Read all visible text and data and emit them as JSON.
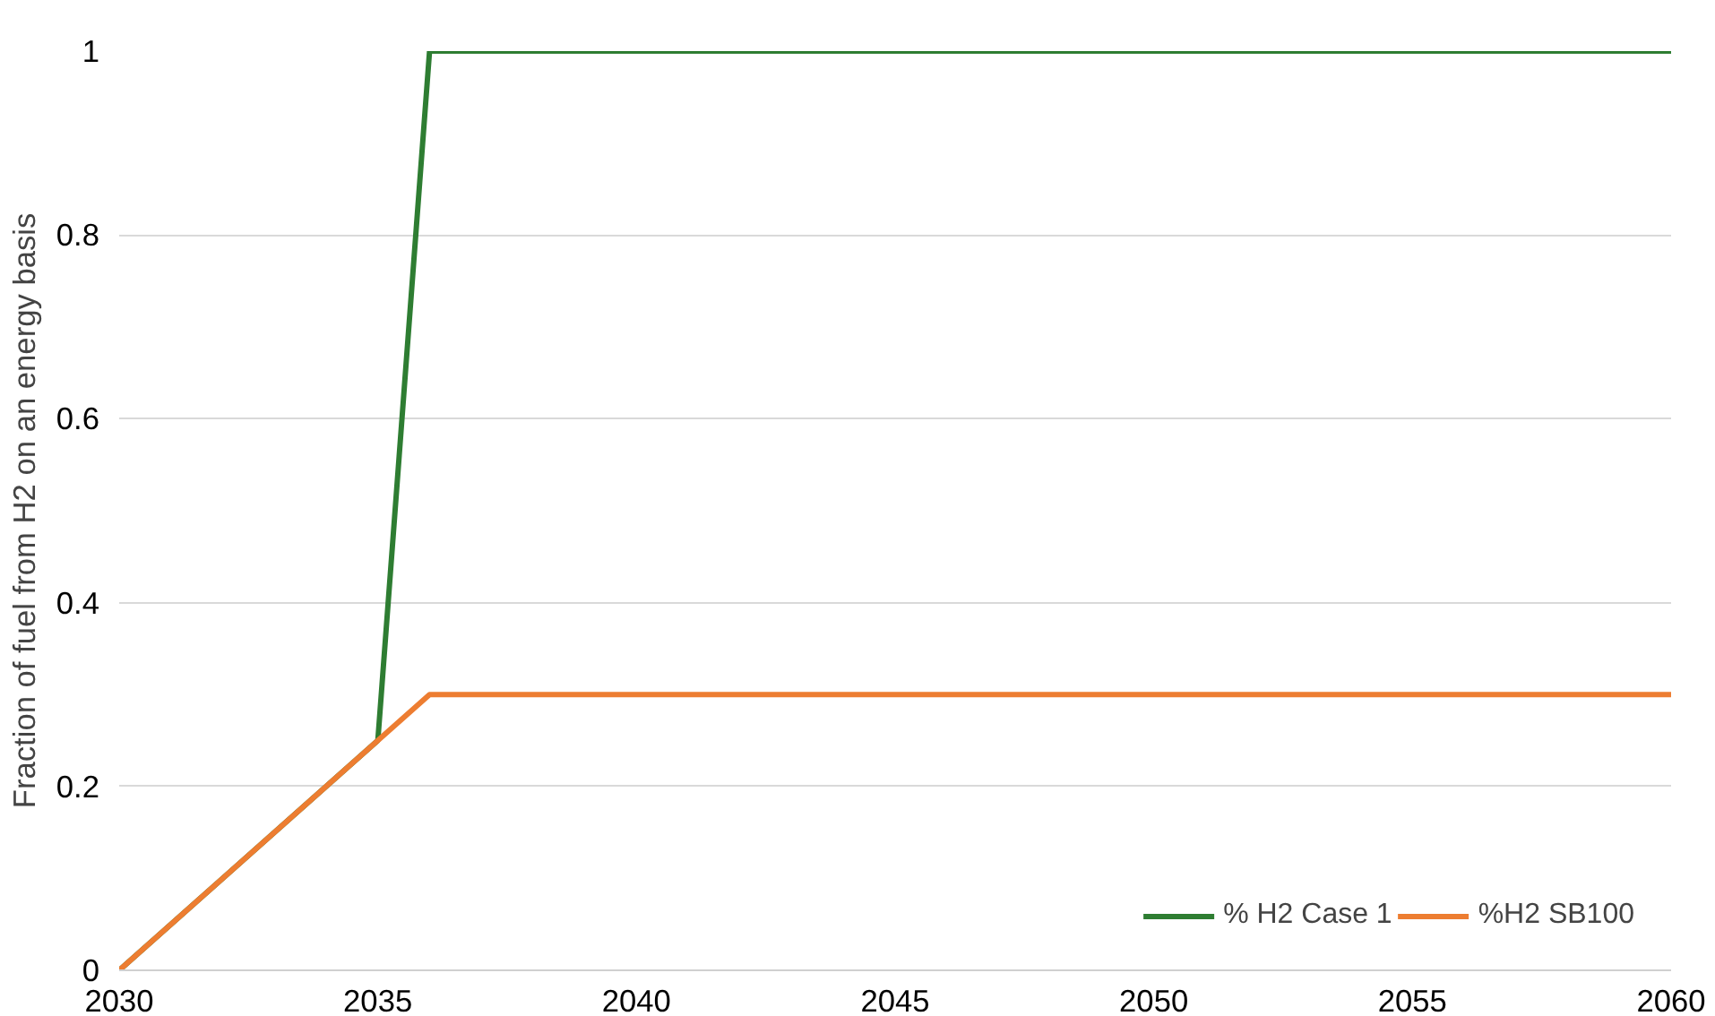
{
  "chart_data": {
    "type": "line",
    "ylabel": "Fraction of fuel from H2 on an energy basis",
    "x": [
      2030,
      2035,
      2036,
      2060
    ],
    "series": [
      {
        "name": "% H2 Case 1",
        "color": "#2e7d32",
        "values": [
          0,
          0.25,
          1,
          1
        ]
      },
      {
        "name": "%H2 SB100",
        "color": "#ed7d31",
        "values": [
          0,
          0.25,
          0.3,
          0.3
        ]
      }
    ],
    "xlim": [
      2030,
      2060
    ],
    "xticks": [
      2030,
      2035,
      2040,
      2045,
      2050,
      2055,
      2060
    ],
    "ylim": [
      0,
      1
    ],
    "yticks": [
      0,
      0.2,
      0.4,
      0.6,
      0.8,
      1
    ],
    "grid": "y",
    "legend": "bottom right",
    "marker": "none",
    "line_style": "solid"
  }
}
